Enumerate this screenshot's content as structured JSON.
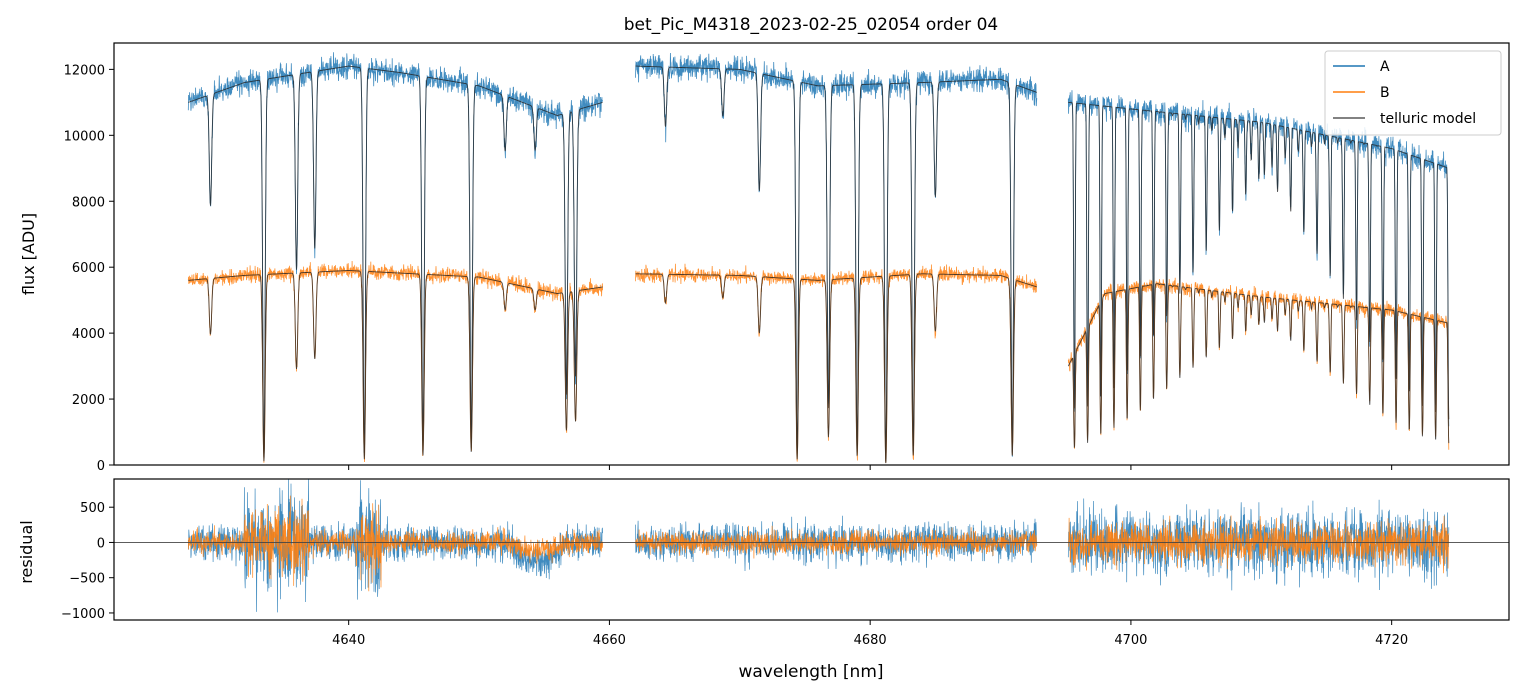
{
  "chart_data": {
    "type": "line",
    "title": "bet_Pic_M4318_2023-02-25_02054  order 04",
    "xlabel": "wavelength [nm]",
    "xlim": [
      4622,
      4729
    ],
    "xticks": [
      4640,
      4660,
      4680,
      4700,
      4720
    ],
    "xtick_labels": [
      "4640",
      "4660",
      "4680",
      "4700",
      "4720"
    ],
    "panels": [
      {
        "name": "flux",
        "ylabel": "flux [ADU]",
        "ylim": [
          0,
          12800
        ],
        "yticks": [
          0,
          2000,
          4000,
          6000,
          8000,
          10000,
          12000
        ],
        "ytick_labels": [
          "0",
          "2000",
          "4000",
          "6000",
          "8000",
          "10000",
          "12000"
        ],
        "legend_position": "top-right"
      },
      {
        "name": "residual",
        "ylabel": "residual",
        "ylim": [
          -1100,
          900
        ],
        "yticks": [
          -1000,
          -500,
          0,
          500
        ],
        "ytick_labels": [
          "−1000",
          "−500",
          "0",
          "500"
        ],
        "zero_line": true
      }
    ],
    "segments": [
      [
        4627.7,
        4659.5
      ],
      [
        4662.0,
        4692.8
      ],
      [
        4695.2,
        4724.4
      ]
    ],
    "series": [
      {
        "name": "A",
        "color": "#1f77b4",
        "continuum": [
          [
            4627.7,
            11000
          ],
          [
            4632,
            11600
          ],
          [
            4640,
            12100
          ],
          [
            4644,
            11900
          ],
          [
            4650,
            11500
          ],
          [
            4656,
            10600
          ],
          [
            4659.5,
            11000
          ],
          [
            4662,
            12100
          ],
          [
            4670,
            12000
          ],
          [
            4676,
            11500
          ],
          [
            4684,
            11600
          ],
          [
            4690,
            11700
          ],
          [
            4692.8,
            11300
          ],
          [
            4695.2,
            11000
          ],
          [
            4700,
            10800
          ],
          [
            4710,
            10400
          ],
          [
            4720,
            9600
          ],
          [
            4724.4,
            9000
          ]
        ]
      },
      {
        "name": "B",
        "color": "#ff7f0e",
        "continuum": [
          [
            4627.7,
            5600
          ],
          [
            4632,
            5750
          ],
          [
            4640,
            5900
          ],
          [
            4650,
            5700
          ],
          [
            4656,
            5200
          ],
          [
            4659.5,
            5400
          ],
          [
            4662,
            5800
          ],
          [
            4670,
            5750
          ],
          [
            4676,
            5600
          ],
          [
            4684,
            5800
          ],
          [
            4690,
            5750
          ],
          [
            4692.8,
            5400
          ],
          [
            4695.2,
            3000
          ],
          [
            4698,
            5200
          ],
          [
            4702,
            5500
          ],
          [
            4710,
            5100
          ],
          [
            4720,
            4700
          ],
          [
            4724.4,
            4300
          ]
        ]
      },
      {
        "name": "telluric model",
        "color": "#222222"
      }
    ],
    "telluric_lines": [
      {
        "x": 4629.4,
        "depth": 0.3
      },
      {
        "x": 4633.5,
        "depth": 0.98
      },
      {
        "x": 4636.0,
        "depth": 0.5
      },
      {
        "x": 4637.4,
        "depth": 0.45
      },
      {
        "x": 4641.2,
        "depth": 0.97
      },
      {
        "x": 4645.7,
        "depth": 0.95
      },
      {
        "x": 4649.4,
        "depth": 0.93
      },
      {
        "x": 4652.0,
        "depth": 0.15
      },
      {
        "x": 4654.3,
        "depth": 0.12
      },
      {
        "x": 4656.7,
        "depth": 0.8
      },
      {
        "x": 4657.4,
        "depth": 0.75
      },
      {
        "x": 4664.3,
        "depth": 0.15
      },
      {
        "x": 4668.7,
        "depth": 0.12
      },
      {
        "x": 4671.5,
        "depth": 0.3
      },
      {
        "x": 4674.4,
        "depth": 0.97
      },
      {
        "x": 4676.8,
        "depth": 0.85
      },
      {
        "x": 4679.0,
        "depth": 0.95
      },
      {
        "x": 4681.2,
        "depth": 0.99
      },
      {
        "x": 4683.3,
        "depth": 0.95
      },
      {
        "x": 4685.0,
        "depth": 0.3
      },
      {
        "x": 4690.9,
        "depth": 0.95
      }
    ],
    "residual_rms": {
      "A": 130,
      "B": 80
    }
  }
}
